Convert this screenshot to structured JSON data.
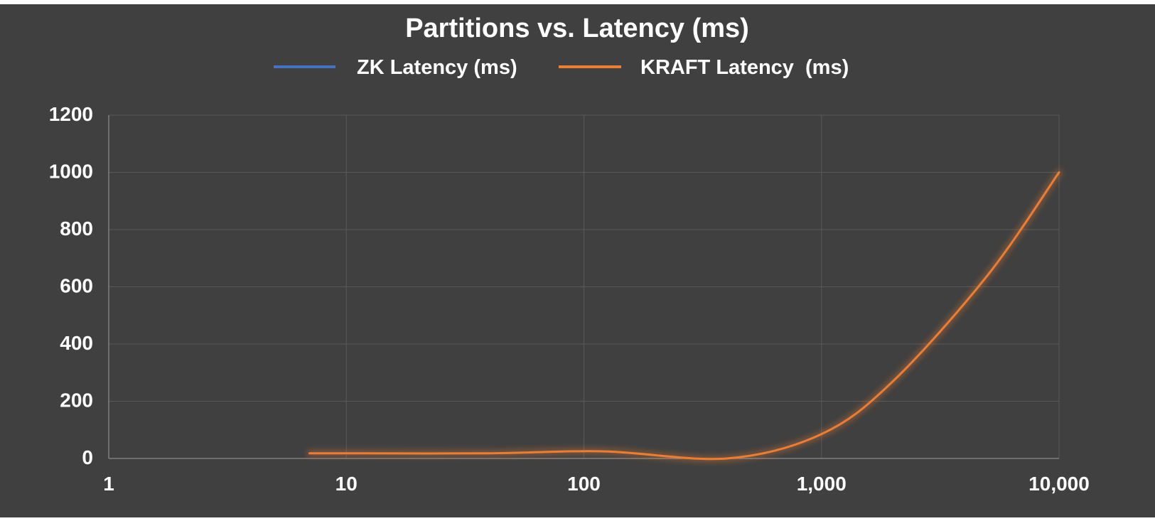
{
  "chart_data": {
    "type": "line",
    "title": "Partitions vs. Latency (ms)",
    "xlabel": "",
    "ylabel": "",
    "x_scale": "log",
    "xlim": [
      1,
      10000
    ],
    "ylim": [
      0,
      1200
    ],
    "x_ticks": [
      1,
      10,
      100,
      1000,
      10000
    ],
    "x_tick_labels": [
      "1",
      "10",
      "100",
      "1,000",
      "10,000"
    ],
    "y_ticks": [
      0,
      200,
      400,
      600,
      800,
      1000,
      1200
    ],
    "y_tick_labels": [
      "0",
      "200",
      "400",
      "600",
      "800",
      "1000",
      "1200"
    ],
    "grid": true,
    "legend_position": "top",
    "series": [
      {
        "name": "ZK Latency (ms)",
        "color": "#4472C4",
        "x": [],
        "y": []
      },
      {
        "name": "KRAFT Latency  (ms)",
        "color": "#ED7D31",
        "x": [
          7,
          10,
          40,
          120,
          400,
          1000,
          2000,
          5000,
          10000
        ],
        "y": [
          18,
          18,
          18,
          25,
          0,
          85,
          270,
          640,
          1000
        ]
      }
    ]
  },
  "colors": {
    "background": "#404040",
    "gridline": "#595959",
    "text": "#ffffff"
  }
}
